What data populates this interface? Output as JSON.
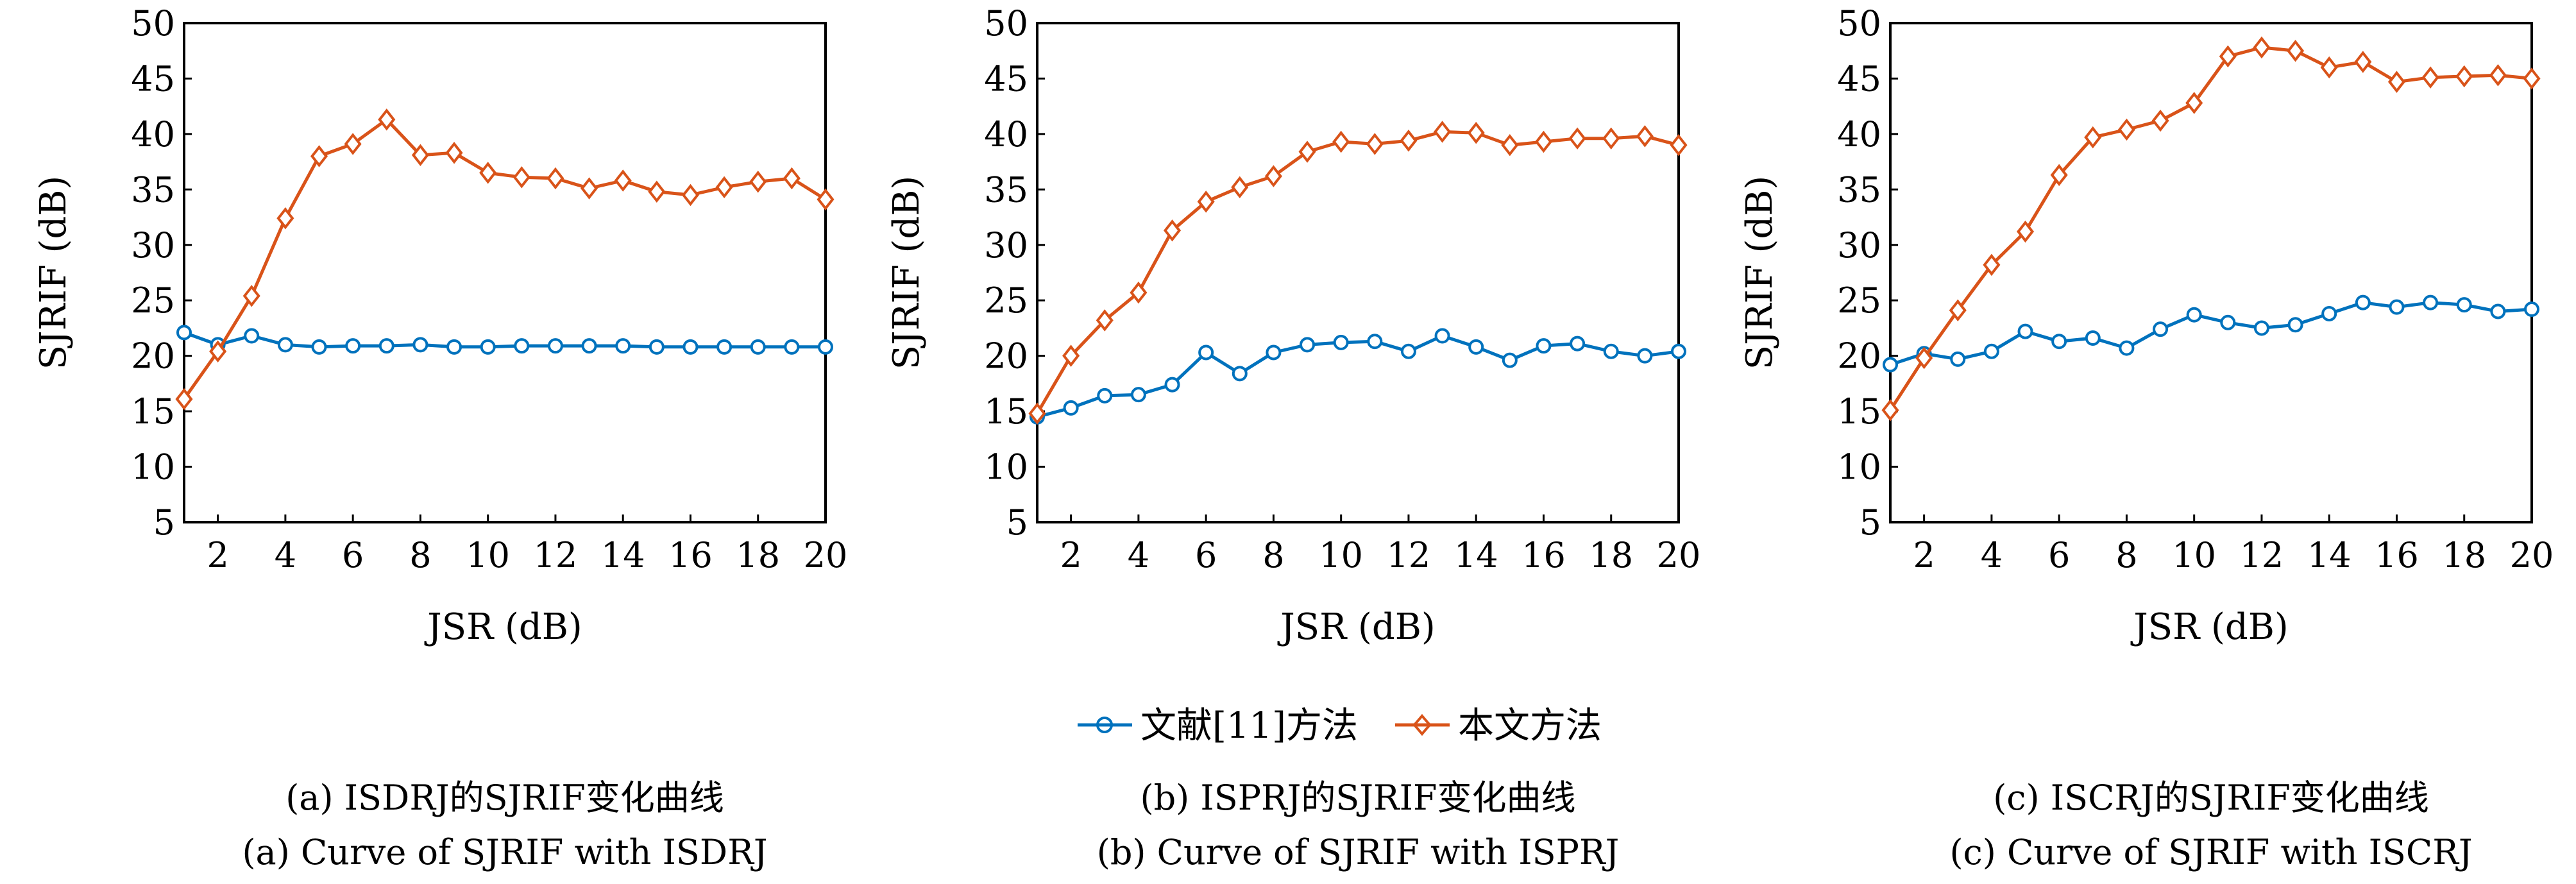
{
  "legend": [
    "文献[11]方法",
    "本文方法"
  ],
  "colors": {
    "blue": "#0072BD",
    "orange": "#D95319"
  },
  "chart_data": [
    {
      "type": "line",
      "xlabel": "JSR (dB)",
      "ylabel": "SJRIF (dB)",
      "xlim": [
        1,
        20
      ],
      "ylim": [
        5,
        50
      ],
      "xticks": [
        2,
        4,
        6,
        8,
        10,
        12,
        14,
        16,
        18,
        20
      ],
      "yticks": [
        5,
        10,
        15,
        20,
        25,
        30,
        35,
        40,
        45,
        50
      ],
      "x": [
        1,
        2,
        3,
        4,
        5,
        6,
        7,
        8,
        9,
        10,
        11,
        12,
        13,
        14,
        15,
        16,
        17,
        18,
        19,
        20
      ],
      "series": [
        {
          "name": "文献[11]方法",
          "marker": "circle",
          "color": "#0072BD",
          "values": [
            22.1,
            21.0,
            21.8,
            21.0,
            20.8,
            20.9,
            20.9,
            21.0,
            20.8,
            20.8,
            20.9,
            20.9,
            20.9,
            20.9,
            20.8,
            20.8,
            20.8,
            20.8,
            20.8,
            20.8
          ]
        },
        {
          "name": "本文方法",
          "marker": "diamond",
          "color": "#D95319",
          "values": [
            16.1,
            20.4,
            25.4,
            32.4,
            38.0,
            39.1,
            41.3,
            38.1,
            38.3,
            36.5,
            36.1,
            36.0,
            35.1,
            35.8,
            34.8,
            34.5,
            35.2,
            35.7,
            36.0,
            34.1
          ]
        }
      ],
      "caption_cn": "(a) ISDRJ的SJRIF变化曲线",
      "caption_en": "(a) Curve of SJRIF with ISDRJ"
    },
    {
      "type": "line",
      "xlabel": "JSR (dB)",
      "ylabel": "SJRIF (dB)",
      "xlim": [
        1,
        20
      ],
      "ylim": [
        5,
        50
      ],
      "xticks": [
        2,
        4,
        6,
        8,
        10,
        12,
        14,
        16,
        18,
        20
      ],
      "yticks": [
        5,
        10,
        15,
        20,
        25,
        30,
        35,
        40,
        45,
        50
      ],
      "x": [
        1,
        2,
        3,
        4,
        5,
        6,
        7,
        8,
        9,
        10,
        11,
        12,
        13,
        14,
        15,
        16,
        17,
        18,
        19,
        20
      ],
      "series": [
        {
          "name": "文献[11]方法",
          "marker": "circle",
          "color": "#0072BD",
          "values": [
            14.5,
            15.3,
            16.4,
            16.5,
            17.4,
            20.3,
            18.4,
            20.3,
            21.0,
            21.2,
            21.3,
            20.4,
            21.8,
            20.8,
            19.6,
            20.9,
            21.1,
            20.4,
            20.0,
            20.4
          ]
        },
        {
          "name": "本文方法",
          "marker": "diamond",
          "color": "#D95319",
          "values": [
            14.8,
            20.0,
            23.2,
            25.7,
            31.3,
            33.9,
            35.2,
            36.2,
            38.4,
            39.3,
            39.1,
            39.4,
            40.2,
            40.1,
            39.0,
            39.3,
            39.6,
            39.6,
            39.8,
            39.0
          ]
        }
      ],
      "caption_cn": "(b) ISPRJ的SJRIF变化曲线",
      "caption_en": "(b) Curve of SJRIF with ISPRJ"
    },
    {
      "type": "line",
      "xlabel": "JSR (dB)",
      "ylabel": "SJRIF (dB)",
      "xlim": [
        1,
        20
      ],
      "ylim": [
        5,
        50
      ],
      "xticks": [
        2,
        4,
        6,
        8,
        10,
        12,
        14,
        16,
        18,
        20
      ],
      "yticks": [
        5,
        10,
        15,
        20,
        25,
        30,
        35,
        40,
        45,
        50
      ],
      "x": [
        1,
        2,
        3,
        4,
        5,
        6,
        7,
        8,
        9,
        10,
        11,
        12,
        13,
        14,
        15,
        16,
        17,
        18,
        19,
        20
      ],
      "series": [
        {
          "name": "文献[11]方法",
          "marker": "circle",
          "color": "#0072BD",
          "values": [
            19.2,
            20.2,
            19.7,
            20.4,
            22.2,
            21.3,
            21.6,
            20.7,
            22.4,
            23.7,
            23.0,
            22.5,
            22.8,
            23.8,
            24.8,
            24.4,
            24.8,
            24.6,
            24.0,
            24.2
          ]
        },
        {
          "name": "本文方法",
          "marker": "diamond",
          "color": "#D95319",
          "values": [
            15.1,
            19.8,
            24.1,
            28.2,
            31.2,
            36.3,
            39.7,
            40.4,
            41.2,
            42.8,
            47.0,
            47.8,
            47.5,
            46.0,
            46.5,
            44.7,
            45.1,
            45.2,
            45.3,
            45.0
          ]
        }
      ],
      "caption_cn": "(c) ISCRJ的SJRIF变化曲线",
      "caption_en": "(c) Curve of SJRIF with ISCRJ"
    }
  ]
}
